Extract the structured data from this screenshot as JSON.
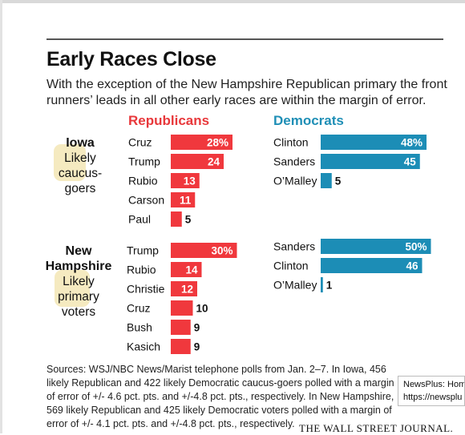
{
  "title": "Early Races Close",
  "subtitle": "With the exception of the New Hampshire Republican primary the front runners’ leads in all other early races are within the margin of error.",
  "source": "Sources: WSJ/NBC News/Marist telephone polls from Jan. 2–7. In Iowa, 456 likely Republican and 422 likely Democratic caucus-goers polled with a margin of error of +/- 4.6 pct. pts. and +/-4.8 pct. pts., respectively. In New Hampshire, 569 likely Republican and 425 likely Democratic voters polled with a margin of error of +/- 4.1 pct. pts. and +/-4.8 pct. pts., respectively.",
  "brand": "THE WALL STREET JOURNAL.",
  "tooltip": {
    "line1": "NewsPlus: Hom",
    "line2": "https://newsplu"
  },
  "states": {
    "iowa": {
      "name": "Iowa",
      "desc": [
        "Likely",
        "caucus-",
        "goers"
      ]
    },
    "nh": {
      "name": [
        "New",
        "Hampshire"
      ],
      "desc": [
        "Likely",
        "primary",
        "voters"
      ]
    }
  },
  "colors": {
    "republican": "#f0383d",
    "democrat": "#1c8db6",
    "rep_header": "#e8383b",
    "dem_header": "#1f8fb6",
    "highlight": "#f2e3ab"
  },
  "chart_data": [
    {
      "type": "bar",
      "orientation": "horizontal",
      "title": "Republicans",
      "group": "Iowa",
      "categories": [
        "Cruz",
        "Trump",
        "Rubio",
        "Carson",
        "Paul"
      ],
      "values": [
        28,
        24,
        13,
        11,
        5
      ],
      "labels": [
        "28%",
        "24",
        "13",
        "11",
        "5"
      ]
    },
    {
      "type": "bar",
      "orientation": "horizontal",
      "title": "Democrats",
      "group": "Iowa",
      "categories": [
        "Clinton",
        "Sanders",
        "O’Malley"
      ],
      "values": [
        48,
        45,
        5
      ],
      "labels": [
        "48%",
        "45",
        "5"
      ]
    },
    {
      "type": "bar",
      "orientation": "horizontal",
      "title": "Republicans",
      "group": "New Hampshire",
      "categories": [
        "Trump",
        "Rubio",
        "Christie",
        "Cruz",
        "Bush",
        "Kasich"
      ],
      "values": [
        30,
        14,
        12,
        10,
        9,
        9
      ],
      "labels": [
        "30%",
        "14",
        "12",
        "10",
        "9",
        "9"
      ]
    },
    {
      "type": "bar",
      "orientation": "horizontal",
      "title": "Democrats",
      "group": "New Hampshire",
      "categories": [
        "Sanders",
        "Clinton",
        "O’Malley"
      ],
      "values": [
        50,
        46,
        1
      ],
      "labels": [
        "50%",
        "46",
        "1"
      ]
    }
  ]
}
